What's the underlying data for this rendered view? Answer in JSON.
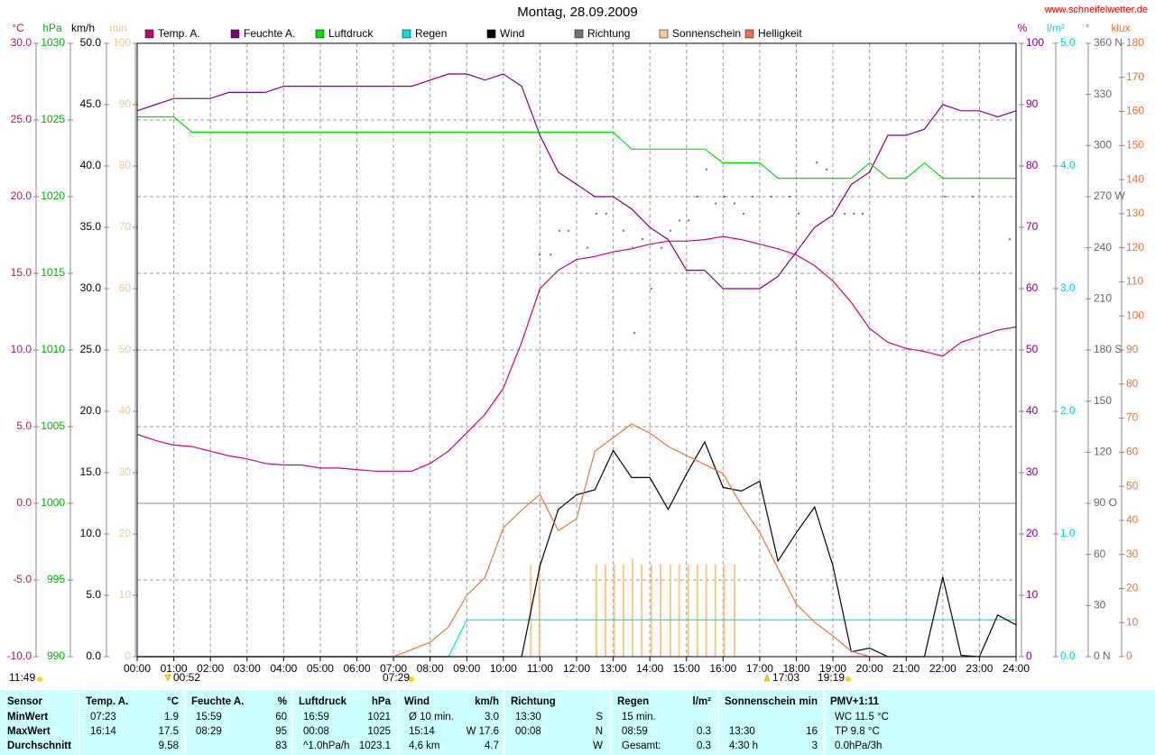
{
  "chart_data": {
    "type": "line",
    "title": "Montag, 28.09.2009",
    "source": "www.schneifelwetter.de",
    "grid": true,
    "xlim": [
      0,
      24
    ],
    "xticks": [
      {
        "value": 0,
        "label": "00:00"
      },
      {
        "value": 1,
        "label": "01:00"
      },
      {
        "value": 2,
        "label": "02:00"
      },
      {
        "value": 3,
        "label": "03:00"
      },
      {
        "value": 4,
        "label": "04:00"
      },
      {
        "value": 5,
        "label": "05:00"
      },
      {
        "value": 6,
        "label": "06:00"
      },
      {
        "value": 7,
        "label": "07:00"
      },
      {
        "value": 8,
        "label": "08:00"
      },
      {
        "value": 9,
        "label": "09:00"
      },
      {
        "value": 10,
        "label": "10:00"
      },
      {
        "value": 11,
        "label": "11:00"
      },
      {
        "value": 12,
        "label": "12:00"
      },
      {
        "value": 13,
        "label": "13:00"
      },
      {
        "value": 14,
        "label": "14:00"
      },
      {
        "value": 15,
        "label": "15:00"
      },
      {
        "value": 16,
        "label": "16:00"
      },
      {
        "value": 17,
        "label": "17:00"
      },
      {
        "value": 18,
        "label": "18:00"
      },
      {
        "value": 19,
        "label": "19:00"
      },
      {
        "value": 20,
        "label": "20:00"
      },
      {
        "value": 21,
        "label": "21:00"
      },
      {
        "value": 22,
        "label": "22:00"
      },
      {
        "value": 23,
        "label": "23:00"
      },
      {
        "value": 24,
        "label": "24:00"
      }
    ],
    "x": [
      0,
      0.5,
      1,
      1.5,
      2,
      2.5,
      3,
      3.5,
      4,
      4.5,
      5,
      5.5,
      6,
      6.5,
      7,
      7.5,
      8,
      8.5,
      9,
      9.5,
      10,
      10.5,
      11,
      11.5,
      12,
      12.5,
      13,
      13.5,
      14,
      14.5,
      15,
      15.5,
      16,
      16.5,
      17,
      17.5,
      18,
      18.5,
      19,
      19.5,
      20,
      20.5,
      21,
      21.5,
      22,
      22.5,
      23,
      23.5,
      24
    ],
    "axes": [
      {
        "unit": "°C",
        "color": "#d0007a",
        "lim": [
          -10,
          30
        ],
        "ticks": [
          {
            "value": -10,
            "label": "-10.0"
          },
          {
            "value": -5,
            "label": "-5.0"
          },
          {
            "value": 0,
            "label": "0.0"
          },
          {
            "value": 5,
            "label": "5.0"
          },
          {
            "value": 10,
            "label": "10.0"
          },
          {
            "value": 15,
            "label": "15.0"
          },
          {
            "value": 20,
            "label": "20.0"
          },
          {
            "value": 25,
            "label": "25.0"
          },
          {
            "value": 30,
            "label": "30.0"
          }
        ]
      },
      {
        "unit": "hPa",
        "color": "#00b000",
        "lim": [
          990,
          1030
        ],
        "ticks": [
          990,
          995,
          1000,
          1005,
          1010,
          1015,
          1020,
          1025,
          1030
        ]
      },
      {
        "unit": "km/h",
        "color": "#000000",
        "lim": [
          0,
          50
        ],
        "ticks": [
          {
            "value": 0,
            "label": "0.0"
          },
          {
            "value": 5,
            "label": "5.0"
          },
          {
            "value": 10,
            "label": "10.0"
          },
          {
            "value": 15,
            "label": "15.0"
          },
          {
            "value": 20,
            "label": "20.0"
          },
          {
            "value": 25,
            "label": "25.0"
          },
          {
            "value": 30,
            "label": "30.0"
          },
          {
            "value": 35,
            "label": "35.0"
          },
          {
            "value": 40,
            "label": "40.0"
          },
          {
            "value": 45,
            "label": "45.0"
          },
          {
            "value": 50,
            "label": "50.0"
          }
        ]
      },
      {
        "unit": "min",
        "color": "#f0c890",
        "lim": [
          0,
          100
        ],
        "ticks": [
          0,
          10,
          20,
          30,
          40,
          50,
          60,
          70,
          80,
          90,
          100
        ]
      },
      {
        "unit": "%",
        "color": "#800080",
        "lim": [
          0,
          100
        ],
        "ticks": [
          0,
          10,
          20,
          30,
          40,
          50,
          60,
          70,
          80,
          90,
          100
        ]
      },
      {
        "unit": "l/m²",
        "color": "#00d0d0",
        "lim": [
          0,
          5
        ],
        "ticks": [
          {
            "value": 0,
            "label": "0.0"
          },
          {
            "value": 1,
            "label": "1.0"
          },
          {
            "value": 2,
            "label": "2.0"
          },
          {
            "value": 3,
            "label": "3.0"
          },
          {
            "value": 4,
            "label": "4.0"
          },
          {
            "value": 5,
            "label": "5.0"
          }
        ]
      },
      {
        "unit": "°",
        "color": "#666666",
        "lim": [
          0,
          360
        ],
        "ticks": [
          {
            "value": 0,
            "label": "0 N"
          },
          30,
          60,
          {
            "value": 90,
            "label": "90 O"
          },
          120,
          150,
          {
            "value": 180,
            "label": "180 S"
          },
          210,
          240,
          {
            "value": 270,
            "label": "270 W"
          },
          300,
          330,
          {
            "value": 360,
            "label": "360 N"
          }
        ]
      },
      {
        "unit": "klux",
        "color": "#f07030",
        "lim": [
          0,
          180
        ],
        "ticks": [
          0,
          10,
          20,
          30,
          40,
          50,
          60,
          70,
          80,
          90,
          100,
          110,
          120,
          130,
          140,
          150,
          160,
          170,
          180
        ]
      }
    ],
    "series": [
      {
        "name": "Temp. A.",
        "color": "#d0007a",
        "axis": 0,
        "type": "line",
        "values": [
          4.5,
          4.1,
          3.8,
          3.7,
          3.4,
          3.1,
          2.9,
          2.6,
          2.5,
          2.5,
          2.3,
          2.3,
          2.2,
          2.1,
          2.1,
          2.1,
          2.6,
          3.4,
          4.6,
          5.8,
          7.5,
          10.5,
          14.0,
          15.2,
          15.9,
          16.1,
          16.4,
          16.6,
          16.9,
          17.1,
          17.1,
          17.2,
          17.4,
          17.2,
          16.9,
          16.6,
          16.2,
          15.5,
          14.5,
          13.1,
          11.4,
          10.5,
          10.1,
          9.9,
          9.6,
          10.5,
          10.9,
          11.3,
          11.5
        ]
      },
      {
        "name": "Feuchte A.",
        "color": "#800080",
        "axis": 4,
        "type": "line",
        "values": [
          89,
          90,
          91,
          91,
          91,
          92,
          92,
          92,
          93,
          93,
          93,
          93,
          93,
          93,
          93,
          93,
          94,
          95,
          95,
          94,
          95,
          93,
          85,
          79,
          77,
          75,
          75,
          73,
          70,
          68,
          63,
          63,
          60,
          60,
          60,
          62,
          66,
          70,
          72,
          77,
          79,
          85,
          85,
          86,
          90,
          89,
          89,
          88,
          89
        ]
      },
      {
        "name": "Luftdruck",
        "color": "#00e000",
        "axis": 1,
        "type": "line",
        "values": [
          1025.2,
          1025.2,
          1025.2,
          1024.2,
          1024.2,
          1024.2,
          1024.2,
          1024.2,
          1024.2,
          1024.2,
          1024.2,
          1024.2,
          1024.2,
          1024.2,
          1024.2,
          1024.2,
          1024.2,
          1024.2,
          1024.2,
          1024.2,
          1024.2,
          1024.2,
          1024.2,
          1024.2,
          1024.2,
          1024.2,
          1024.2,
          1023.1,
          1023.1,
          1023.1,
          1023.1,
          1023.1,
          1022.2,
          1022.2,
          1022.2,
          1021.2,
          1021.2,
          1021.2,
          1021.2,
          1021.2,
          1022.2,
          1021.2,
          1021.2,
          1022.2,
          1021.2,
          1021.2,
          1021.2,
          1021.2,
          1021.2
        ]
      },
      {
        "name": "Regen",
        "color": "#00e0e0",
        "axis": 5,
        "type": "line",
        "values": [
          0,
          0,
          0,
          0,
          0,
          0,
          0,
          0,
          0,
          0,
          0,
          0,
          0,
          0,
          0,
          0,
          0,
          0,
          0.3,
          0.3,
          0.3,
          0.3,
          0.3,
          0.3,
          0.3,
          0.3,
          0.3,
          0.3,
          0.3,
          0.3,
          0.3,
          0.3,
          0.3,
          0.3,
          0.3,
          0.3,
          0.3,
          0.3,
          0.3,
          0.3,
          0.3,
          0.3,
          0.3,
          0.3,
          0.3,
          0.3,
          0.3,
          0.3,
          0.3
        ]
      },
      {
        "name": "Wind",
        "color": "#000000",
        "axis": 2,
        "type": "line",
        "values": [
          0,
          0,
          0,
          0,
          0,
          0,
          0,
          0,
          0,
          0,
          0,
          0,
          0,
          0,
          0,
          0,
          0,
          0,
          0,
          0,
          0,
          0,
          7.4,
          12.0,
          13.2,
          13.6,
          16.8,
          14.6,
          14.6,
          12.0,
          14.9,
          17.5,
          13.8,
          13.5,
          14.3,
          7.8,
          10.1,
          12.2,
          7.4,
          0.4,
          0.7,
          0,
          0,
          0,
          6.5,
          0.1,
          0,
          3.4,
          2.6
        ]
      },
      {
        "name": "Richtung",
        "color": "#707070",
        "axis": 6,
        "type": "scatter",
        "x": [
          10.99,
          11.29,
          11.53,
          11.78,
          12.3,
          12.54,
          12.81,
          13.28,
          13.53,
          13.58,
          13.8,
          14.04,
          14.32,
          14.56,
          14.81,
          15.06,
          15.3,
          15.55,
          15.8,
          16.04,
          16.31,
          16.56,
          16.81,
          17.32,
          17.82,
          18.06,
          18.56,
          18.83,
          19.32,
          19.57,
          19.81,
          22.06,
          22.82,
          23.83
        ],
        "values": [
          236,
          236,
          250,
          250,
          240,
          260,
          260,
          250,
          240,
          190,
          245,
          216,
          240,
          250,
          256,
          256,
          270,
          286,
          266,
          270,
          266,
          260,
          270,
          270,
          270,
          260,
          290,
          286,
          260,
          260,
          260,
          270,
          270,
          245
        ]
      },
      {
        "name": "Sonnenschein",
        "color": "#f8c88c",
        "axis": 3,
        "type": "bar",
        "x": [
          10.75,
          10.98,
          12.54,
          12.79,
          13.03,
          13.28,
          13.53,
          13.78,
          14.04,
          14.29,
          14.56,
          14.8,
          15.05,
          15.3,
          15.54,
          15.79,
          16.03,
          16.31
        ],
        "values": [
          15,
          15,
          15,
          15,
          15,
          15,
          16,
          15,
          15,
          15,
          15,
          15,
          15,
          15,
          15,
          15,
          15,
          15
        ]
      },
      {
        "name": "Helligkeit",
        "color": "#f07040",
        "axis": 7,
        "type": "line",
        "values": [
          0,
          0,
          0,
          0,
          0,
          0,
          0,
          0,
          0,
          0,
          0,
          0,
          0,
          0,
          0,
          2.1,
          4.2,
          8.7,
          18,
          23.3,
          37.8,
          43,
          47.6,
          37,
          40.5,
          60.3,
          64.3,
          68.3,
          65.6,
          61.7,
          59,
          56.4,
          53.7,
          44.5,
          36.5,
          25.9,
          15.4,
          10.1,
          6.1,
          1.6,
          0,
          0,
          0,
          0,
          0,
          0,
          0,
          0,
          0
        ]
      }
    ],
    "annotations": [
      "11:49",
      "00:52",
      "07:29",
      "17:03",
      "19:19"
    ]
  },
  "table": {
    "row_labels": [
      "Sensor",
      "MinWert",
      "MaxWert",
      "Durchschnitt"
    ],
    "groups": [
      {
        "name": "Temp. A.",
        "unit": "°C",
        "rows": [
          {
            "left": "07:23",
            "right": "1.9"
          },
          {
            "left": "16:14",
            "right": "17.5"
          },
          {
            "right": "9.58"
          }
        ]
      },
      {
        "name": "Feuchte A.",
        "unit": "%",
        "rows": [
          {
            "left": "15:59",
            "right": "60"
          },
          {
            "left": "08:29",
            "right": "95"
          },
          {
            "right": "83"
          }
        ]
      },
      {
        "name": "Luftdruck",
        "unit": "hPa",
        "rows": [
          {
            "left": "16:59",
            "right": "1021"
          },
          {
            "left": "00:08",
            "right": "1025"
          },
          {
            "left": "^1.0hPa/h",
            "right": "1023.1"
          }
        ]
      },
      {
        "name": "Wind",
        "unit": "km/h",
        "rows": [
          {
            "left": "Ø 10 min.",
            "right": "3.0"
          },
          {
            "left": "15:14",
            "right": "W 17.6"
          },
          {
            "left": "4,6 km",
            "right": "4.7"
          }
        ]
      },
      {
        "name": "Richtung",
        "rows": [
          {
            "left": "13:30",
            "right": "S"
          },
          {
            "left": "00:08",
            "right": "N"
          },
          {
            "right": "W"
          }
        ]
      },
      {
        "name": "Regen",
        "unit": "l/m²",
        "rows": [
          {
            "left": "15 min."
          },
          {
            "left": "08:59",
            "right": "0.3"
          },
          {
            "left": "Gesamt:",
            "right": "0.3"
          }
        ]
      },
      {
        "name": "Sonnenschein",
        "unit": "min",
        "rows": [
          null,
          {
            "left": "13:30",
            "right": "16"
          },
          {
            "left": "4:30 h",
            "right": "3"
          }
        ]
      },
      {
        "name": "PMV+1:11",
        "rows": [
          {
            "left": "WC 11.5 °C"
          },
          {
            "left": "TP 9.8 °C"
          },
          {
            "left": "0.0hPa/3h"
          }
        ]
      }
    ]
  }
}
